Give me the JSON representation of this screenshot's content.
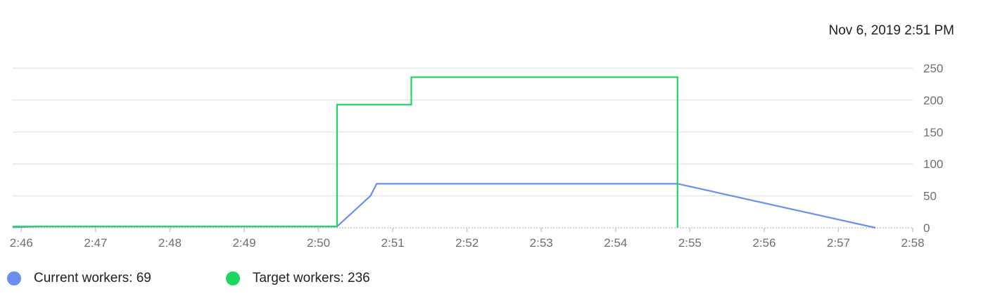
{
  "timestamp": "Nov 6, 2019 2:51 PM",
  "legend": {
    "current": {
      "label": "Current workers: 69",
      "color": "#6b8ff0"
    },
    "target": {
      "label": "Target workers: 236",
      "color": "#1ed760"
    }
  },
  "chart_data": {
    "type": "line",
    "title": "",
    "xlabel": "",
    "ylabel": "",
    "x_ticks": [
      "2:46",
      "2:47",
      "2:48",
      "2:49",
      "2:50",
      "2:51",
      "2:52",
      "2:53",
      "2:54",
      "2:55",
      "2:56",
      "2:57",
      "2:58"
    ],
    "y_ticks": [
      0,
      50,
      100,
      150,
      200,
      250
    ],
    "xlim": [
      "2:45:53",
      "2:58:00"
    ],
    "ylim": [
      0,
      250
    ],
    "y_axis_position": "right",
    "grid": true,
    "legend_position": "bottom-left",
    "series": [
      {
        "name": "Current workers",
        "color": "#6b8ff0",
        "shape": "linear",
        "points": [
          {
            "t": "2:45:53",
            "v": 1
          },
          {
            "t": "2:46:15",
            "v": 2
          },
          {
            "t": "2:50:15",
            "v": 2
          },
          {
            "t": "2:50:42",
            "v": 50
          },
          {
            "t": "2:50:47",
            "v": 69
          },
          {
            "t": "2:54:50",
            "v": 69
          },
          {
            "t": "2:57:30",
            "v": 0
          }
        ]
      },
      {
        "name": "Target workers",
        "color": "#1ed760",
        "shape": "step",
        "points": [
          {
            "t": "2:45:53",
            "v": 2
          },
          {
            "t": "2:50:15",
            "v": 2
          },
          {
            "t": "2:50:15",
            "v": 193
          },
          {
            "t": "2:51:15",
            "v": 193
          },
          {
            "t": "2:51:15",
            "v": 236
          },
          {
            "t": "2:54:50",
            "v": 236
          },
          {
            "t": "2:54:50",
            "v": 0
          }
        ]
      }
    ]
  }
}
